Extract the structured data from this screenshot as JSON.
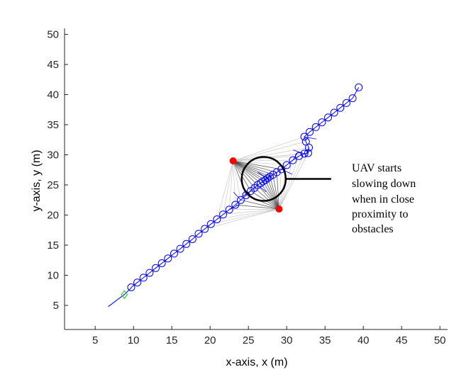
{
  "chart_data": {
    "type": "scatter",
    "title": "",
    "xlabel": "x-axis, x (m)",
    "ylabel": "y-axis, y (m)",
    "xlim": [
      1,
      51
    ],
    "ylim": [
      1,
      51
    ],
    "xticks": [
      5,
      10,
      15,
      20,
      25,
      30,
      35,
      40,
      45,
      50
    ],
    "yticks": [
      5,
      10,
      15,
      20,
      25,
      30,
      35,
      40,
      45,
      50
    ],
    "grid": false,
    "colors": {
      "path": "#0000ff",
      "obstacle": "#ff0000",
      "start": "#33cc33",
      "rays": "#555555",
      "annotation": "#000000"
    },
    "start": {
      "x": 8.8,
      "y": 6.8
    },
    "path_line": [
      [
        6.7,
        4.8
      ],
      [
        8.8,
        6.8
      ],
      [
        9.7,
        7.9
      ]
    ],
    "obstacles": [
      {
        "x": 23,
        "y": 29
      },
      {
        "x": 29,
        "y": 21
      }
    ],
    "uav_positions": [
      [
        9.7,
        8.0
      ],
      [
        10.5,
        8.8
      ],
      [
        11.3,
        9.6
      ],
      [
        12.1,
        10.4
      ],
      [
        12.9,
        11.2
      ],
      [
        13.7,
        12.0
      ],
      [
        14.5,
        12.8
      ],
      [
        15.3,
        13.6
      ],
      [
        16.1,
        14.4
      ],
      [
        16.9,
        15.2
      ],
      [
        17.7,
        16.0
      ],
      [
        18.5,
        16.9
      ],
      [
        19.3,
        17.7
      ],
      [
        20.1,
        18.5
      ],
      [
        20.9,
        19.3
      ],
      [
        21.7,
        20.1
      ],
      [
        22.5,
        20.9
      ],
      [
        23.3,
        21.7
      ],
      [
        24.0,
        22.5
      ],
      [
        24.7,
        23.3
      ],
      [
        25.3,
        24.0
      ],
      [
        25.8,
        24.5
      ],
      [
        26.2,
        25.0
      ],
      [
        26.6,
        25.3
      ],
      [
        26.9,
        25.6
      ],
      [
        27.2,
        25.8
      ],
      [
        27.5,
        26.1
      ],
      [
        27.8,
        26.4
      ],
      [
        28.2,
        26.7
      ],
      [
        28.7,
        27.1
      ],
      [
        29.3,
        27.6
      ],
      [
        30.0,
        28.3
      ],
      [
        30.8,
        29.1
      ],
      [
        31.6,
        29.8
      ],
      [
        32.3,
        30.2
      ],
      [
        32.8,
        30.3
      ],
      [
        32.9,
        31.2
      ],
      [
        32.5,
        32.2
      ],
      [
        32.3,
        33.0
      ],
      [
        33.0,
        33.8
      ],
      [
        33.8,
        34.6
      ],
      [
        34.6,
        35.4
      ],
      [
        35.4,
        36.2
      ],
      [
        36.2,
        37.0
      ],
      [
        37.0,
        37.8
      ],
      [
        37.8,
        38.6
      ],
      [
        38.6,
        39.4
      ],
      [
        39.4,
        41.2
      ]
    ],
    "annotation": {
      "lines": [
        "UAV starts",
        "slowing down",
        "when in close",
        "proximity to",
        "obstacles"
      ],
      "circle_center": {
        "x": 27,
        "y": 26
      },
      "pointer_to": {
        "x": 35.8,
        "y": 26
      }
    }
  }
}
